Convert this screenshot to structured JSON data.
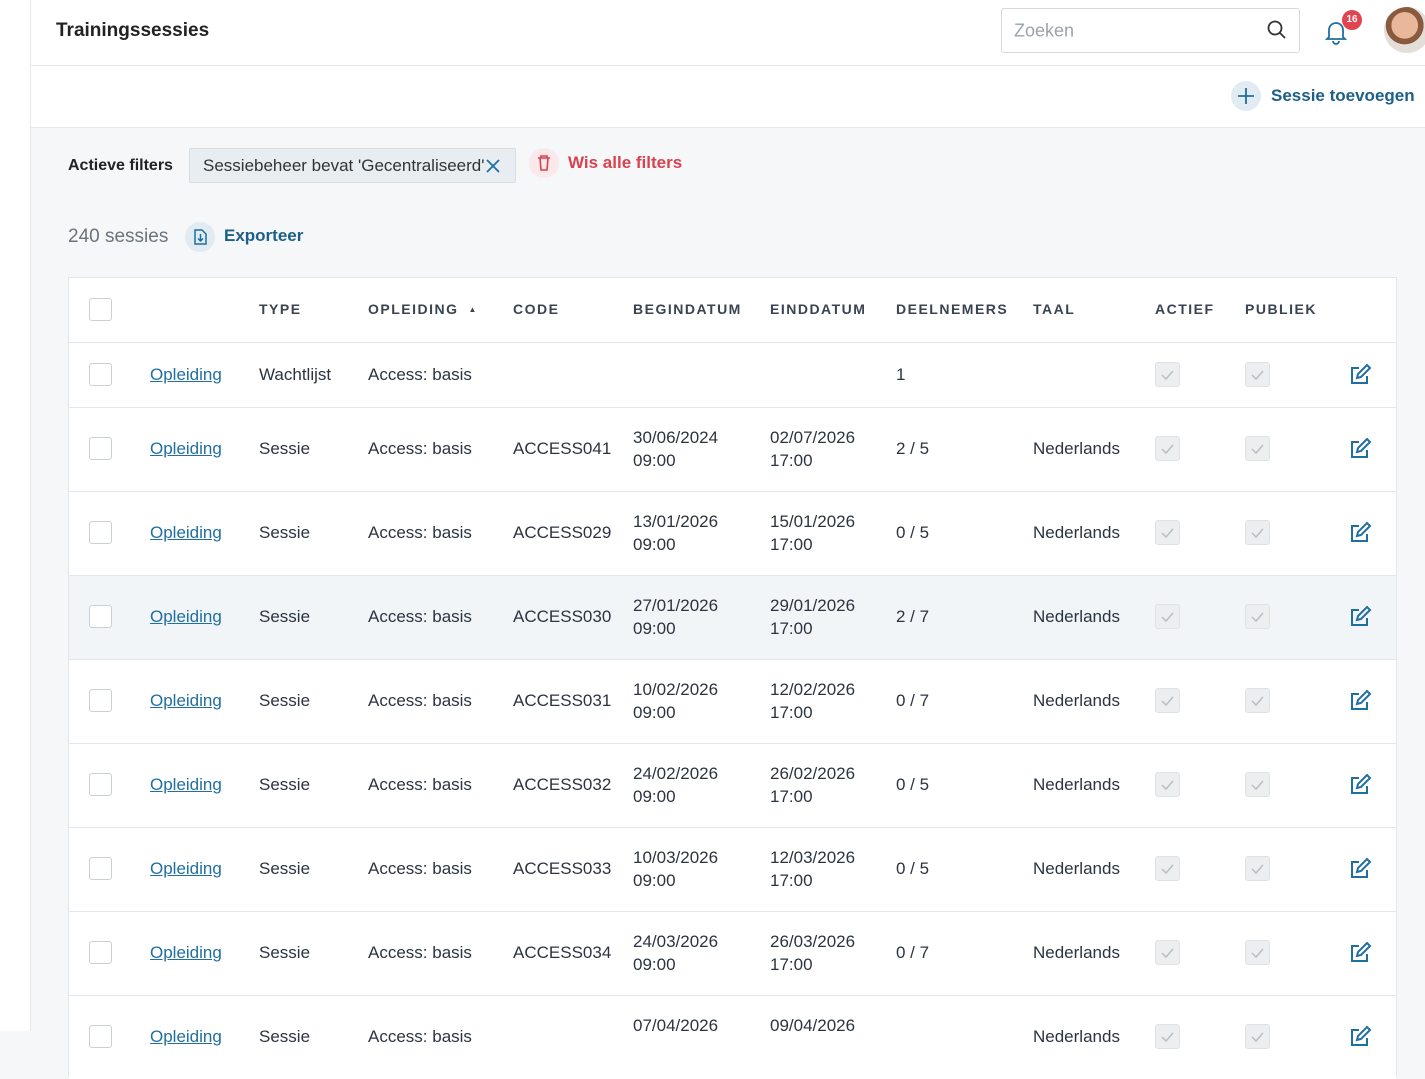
{
  "header": {
    "title": "Trainingssessies",
    "search_placeholder": "Zoeken",
    "notification_count": "16"
  },
  "toolbar": {
    "add_button": "Sessie toevoegen"
  },
  "filters": {
    "label": "Actieve filters",
    "chips": [
      "Sessiebeheer bevat 'Gecentraliseerd'"
    ],
    "clear": "Wis alle filters"
  },
  "summary": {
    "count": "240 sessies",
    "export": "Exporteer"
  },
  "table": {
    "columns": [
      "TYPE",
      "OPLEIDING",
      "CODE",
      "BEGINDATUM",
      "EINDDATUM",
      "DEELNEMERS",
      "TAAL",
      "ACTIEF",
      "PUBLIEK"
    ],
    "rows": [
      {
        "link": "Opleiding",
        "type": "Wachtlijst",
        "opleiding": "Access: basis",
        "deelnemers": "1"
      },
      {
        "link": "Opleiding",
        "type": "Sessie",
        "opleiding": "Access: basis",
        "code": "ACCESS041",
        "begin_date": "30/06/2024",
        "begin_time": "09:00",
        "end_date": "02/07/2026",
        "end_time": "17:00",
        "deelnemers": "2 / 5",
        "taal": "Nederlands"
      },
      {
        "link": "Opleiding",
        "type": "Sessie",
        "opleiding": "Access: basis",
        "code": "ACCESS029",
        "begin_date": "13/01/2026",
        "begin_time": "09:00",
        "end_date": "15/01/2026",
        "end_time": "17:00",
        "deelnemers": "0 / 5",
        "taal": "Nederlands"
      },
      {
        "link": "Opleiding",
        "type": "Sessie",
        "opleiding": "Access: basis",
        "code": "ACCESS030",
        "begin_date": "27/01/2026",
        "begin_time": "09:00",
        "end_date": "29/01/2026",
        "end_time": "17:00",
        "deelnemers": "2 / 7",
        "taal": "Nederlands"
      },
      {
        "link": "Opleiding",
        "type": "Sessie",
        "opleiding": "Access: basis",
        "code": "ACCESS031",
        "begin_date": "10/02/2026",
        "begin_time": "09:00",
        "end_date": "12/02/2026",
        "end_time": "17:00",
        "deelnemers": "0 / 7",
        "taal": "Nederlands"
      },
      {
        "link": "Opleiding",
        "type": "Sessie",
        "opleiding": "Access: basis",
        "code": "ACCESS032",
        "begin_date": "24/02/2026",
        "begin_time": "09:00",
        "end_date": "26/02/2026",
        "end_time": "17:00",
        "deelnemers": "0 / 5",
        "taal": "Nederlands"
      },
      {
        "link": "Opleiding",
        "type": "Sessie",
        "opleiding": "Access: basis",
        "code": "ACCESS033",
        "begin_date": "10/03/2026",
        "begin_time": "09:00",
        "end_date": "12/03/2026",
        "end_time": "17:00",
        "deelnemers": "0 / 5",
        "taal": "Nederlands"
      },
      {
        "link": "Opleiding",
        "type": "Sessie",
        "opleiding": "Access: basis",
        "code": "ACCESS034",
        "begin_date": "24/03/2026",
        "begin_time": "09:00",
        "end_date": "26/03/2026",
        "end_time": "17:00",
        "deelnemers": "0 / 7",
        "taal": "Nederlands"
      },
      {
        "link": "Opleiding",
        "type": "Sessie",
        "opleiding": "Access: basis",
        "begin_date": "07/04/2026",
        "end_date": "09/04/2026",
        "taal": "Nederlands"
      }
    ]
  }
}
